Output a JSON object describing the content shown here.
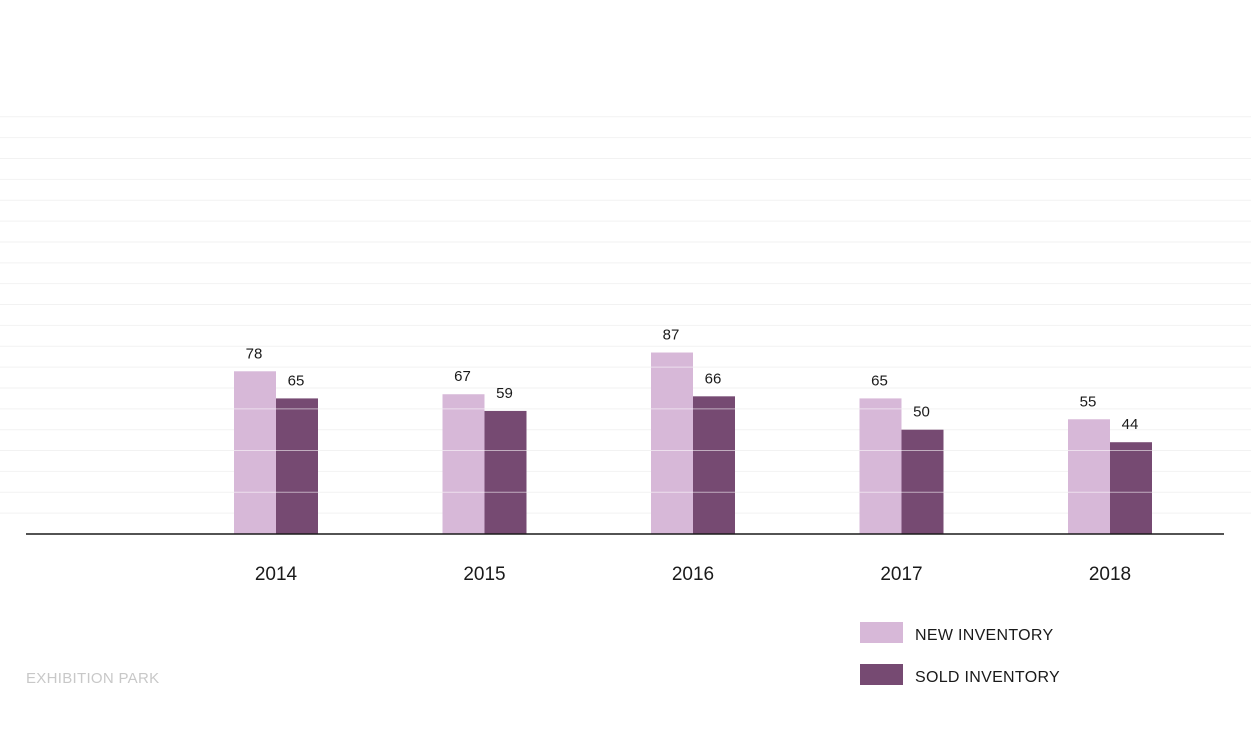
{
  "chart_data": {
    "type": "bar",
    "categories": [
      "2014",
      "2015",
      "2016",
      "2017",
      "2018"
    ],
    "series": [
      {
        "name": "NEW INVENTORY",
        "values": [
          78,
          67,
          87,
          65,
          55
        ],
        "color": "#d7b8d8"
      },
      {
        "name": "SOLD INVENTORY",
        "values": [
          65,
          59,
          66,
          50,
          44
        ],
        "color": "#764a72"
      }
    ],
    "title": "",
    "xlabel": "",
    "ylabel": "",
    "ylim": [
      0,
      200
    ],
    "grid": true,
    "legend_position": "bottom-right"
  },
  "watermark": "EXHIBITION PARK",
  "colors": {
    "axis": "#1a1a1a",
    "grid": "#f2f2f2",
    "bar_divider": "#ffffff"
  }
}
